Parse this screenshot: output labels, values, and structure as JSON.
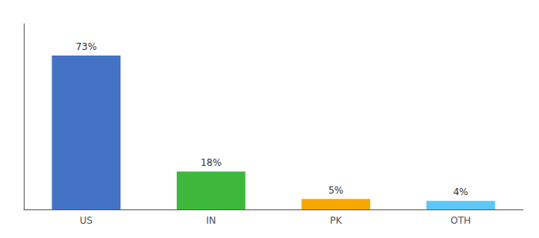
{
  "chart_data": {
    "type": "bar",
    "categories": [
      "US",
      "IN",
      "PK",
      "OTH"
    ],
    "values": [
      73,
      18,
      5,
      4
    ],
    "value_labels": [
      "73%",
      "18%",
      "5%",
      "4%"
    ],
    "colors": [
      "#4472c4",
      "#3db83d",
      "#f5a800",
      "#5bc8f5"
    ],
    "ylim": [
      0,
      88
    ],
    "data_labels": true,
    "tick_labels": "x",
    "grid": false
  }
}
